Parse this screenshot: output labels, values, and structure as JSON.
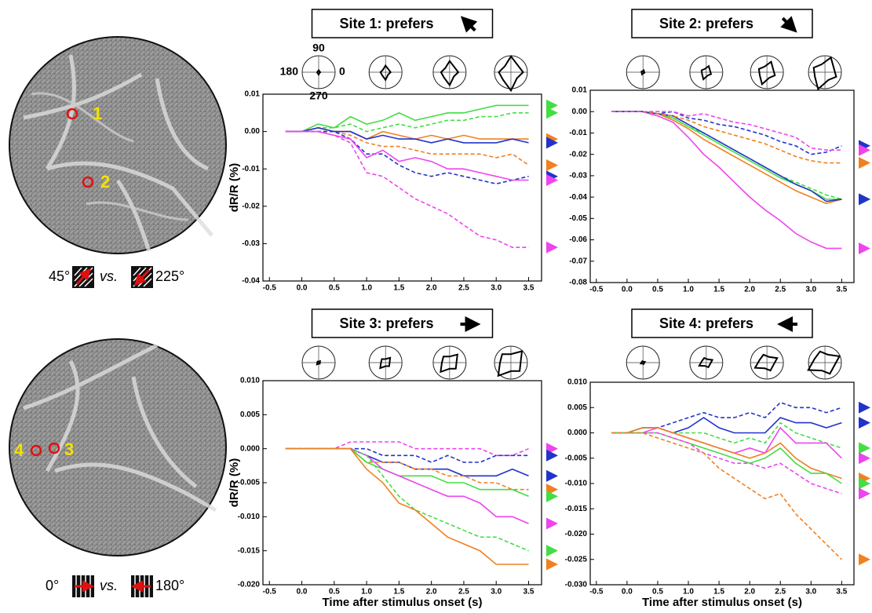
{
  "images": [
    {
      "site_labels": [
        "1",
        "2"
      ],
      "stimulus": {
        "left": "45°",
        "vs": "vs.",
        "right": "225°"
      }
    },
    {
      "site_labels": [
        "4",
        "3"
      ],
      "stimulus": {
        "left": "0°",
        "vs": "vs.",
        "right": "180°"
      }
    }
  ],
  "chart_data": [
    {
      "type": "line",
      "title": "Site 1: prefers",
      "polar_labels": [
        "90",
        "180",
        "0",
        "270"
      ],
      "ylabel": "dR/R (%)",
      "x": [
        -0.25,
        0,
        0.25,
        0.5,
        0.75,
        1.0,
        1.25,
        1.5,
        1.75,
        2.0,
        2.25,
        2.5,
        2.75,
        3.0,
        3.25,
        3.5
      ],
      "xlim": [
        -0.6,
        3.7
      ],
      "xticks": [
        -0.5,
        {
          "value": 0,
          "label": "0.0"
        },
        0.5,
        {
          "value": 1,
          "label": "1.0"
        },
        1.5,
        {
          "value": 2,
          "label": "2.0"
        },
        2.5,
        {
          "value": 3,
          "label": "3.0"
        },
        3.5
      ],
      "ylim": [
        -0.04,
        0.01
      ],
      "yticks": [
        0.01,
        {
          "value": 0,
          "label": "0.00"
        },
        -0.01,
        -0.02,
        -0.03,
        -0.04
      ],
      "series": [
        {
          "color": "#44dd44",
          "dash": false,
          "values": [
            0,
            0,
            0.002,
            0.001,
            0.004,
            0.002,
            0.003,
            0.005,
            0.003,
            0.004,
            0.005,
            0.005,
            0.006,
            0.007,
            0.007,
            0.007
          ]
        },
        {
          "color": "#44dd44",
          "dash": true,
          "values": [
            0,
            0,
            0.001,
            0.001,
            0.002,
            0,
            0.001,
            0.002,
            0.001,
            0.002,
            0.003,
            0.003,
            0.004,
            0.004,
            0.005,
            0.005
          ]
        },
        {
          "color": "#f08020",
          "dash": false,
          "values": [
            0,
            0,
            0.001,
            0,
            0,
            -0.002,
            0,
            -0.001,
            -0.002,
            -0.001,
            -0.002,
            -0.001,
            -0.002,
            -0.002,
            -0.002,
            -0.002
          ]
        },
        {
          "color": "#f08020",
          "dash": true,
          "values": [
            0,
            0,
            0,
            0,
            -0.001,
            -0.003,
            -0.004,
            -0.004,
            -0.005,
            -0.006,
            -0.006,
            -0.006,
            -0.006,
            -0.007,
            -0.006,
            -0.009
          ]
        },
        {
          "color": "#2233cc",
          "dash": false,
          "values": [
            0,
            0,
            0.001,
            0,
            0,
            -0.002,
            -0.001,
            -0.002,
            -0.002,
            -0.003,
            -0.002,
            -0.003,
            -0.003,
            -0.003,
            -0.002,
            -0.003
          ]
        },
        {
          "color": "#2233cc",
          "dash": true,
          "values": [
            0,
            0,
            0,
            0,
            -0.002,
            -0.006,
            -0.006,
            -0.009,
            -0.011,
            -0.012,
            -0.011,
            -0.012,
            -0.013,
            -0.014,
            -0.013,
            -0.012
          ]
        },
        {
          "color": "#ee44ee",
          "dash": false,
          "values": [
            0,
            0,
            0,
            -0.001,
            -0.002,
            -0.007,
            -0.005,
            -0.008,
            -0.007,
            -0.008,
            -0.01,
            -0.01,
            -0.011,
            -0.012,
            -0.013,
            -0.013
          ]
        },
        {
          "color": "#ee44ee",
          "dash": true,
          "values": [
            0,
            0,
            0,
            -0.001,
            -0.003,
            -0.011,
            -0.012,
            -0.015,
            -0.018,
            -0.02,
            -0.022,
            -0.025,
            -0.028,
            -0.029,
            -0.031,
            -0.031
          ]
        }
      ]
    },
    {
      "type": "line",
      "title": "Site 2: prefers",
      "x": [
        -0.25,
        0,
        0.25,
        0.5,
        0.75,
        1.0,
        1.25,
        1.5,
        1.75,
        2.0,
        2.25,
        2.5,
        2.75,
        3.0,
        3.25,
        3.5
      ],
      "xlim": [
        -0.6,
        3.7
      ],
      "xticks": [
        -0.5,
        {
          "value": 0,
          "label": "0.0"
        },
        0.5,
        {
          "value": 1,
          "label": "1.0"
        },
        1.5,
        {
          "value": 2,
          "label": "2.0"
        },
        2.5,
        {
          "value": 3,
          "label": "3.0"
        },
        3.5
      ],
      "ylim": [
        -0.08,
        0.01
      ],
      "yticks": [
        0.01,
        {
          "value": 0,
          "label": "0.00"
        },
        -0.01,
        -0.02,
        -0.03,
        -0.04,
        -0.05,
        -0.06,
        -0.07,
        -0.08
      ],
      "series": [
        {
          "color": "#ee44ee",
          "dash": false,
          "values": [
            0,
            0,
            0,
            -0.002,
            -0.005,
            -0.012,
            -0.02,
            -0.026,
            -0.033,
            -0.04,
            -0.046,
            -0.051,
            -0.057,
            -0.061,
            -0.064,
            -0.064
          ]
        },
        {
          "color": "#f08020",
          "dash": false,
          "values": [
            0,
            0,
            0,
            -0.001,
            -0.004,
            -0.008,
            -0.013,
            -0.017,
            -0.021,
            -0.025,
            -0.029,
            -0.033,
            -0.037,
            -0.04,
            -0.043,
            -0.041
          ]
        },
        {
          "color": "#44dd44",
          "dash": false,
          "values": [
            0,
            0,
            0,
            -0.001,
            -0.003,
            -0.007,
            -0.011,
            -0.015,
            -0.019,
            -0.023,
            -0.027,
            -0.031,
            -0.034,
            -0.037,
            -0.041,
            -0.041
          ]
        },
        {
          "color": "#44dd44",
          "dash": true,
          "values": [
            0,
            0,
            0,
            -0.001,
            -0.003,
            -0.007,
            -0.01,
            -0.014,
            -0.018,
            -0.022,
            -0.026,
            -0.03,
            -0.033,
            -0.036,
            -0.039,
            -0.041
          ]
        },
        {
          "color": "#2233cc",
          "dash": false,
          "values": [
            0,
            0,
            0,
            -0.001,
            -0.002,
            -0.006,
            -0.01,
            -0.014,
            -0.018,
            -0.022,
            -0.026,
            -0.03,
            -0.034,
            -0.037,
            -0.042,
            -0.041
          ]
        },
        {
          "color": "#2233cc",
          "dash": true,
          "values": [
            0,
            0,
            0,
            -0.001,
            0,
            -0.003,
            -0.004,
            -0.006,
            -0.007,
            -0.009,
            -0.011,
            -0.014,
            -0.016,
            -0.02,
            -0.019,
            -0.016
          ]
        },
        {
          "color": "#f08020",
          "dash": true,
          "values": [
            0,
            0,
            0,
            -0.001,
            -0.002,
            -0.004,
            -0.007,
            -0.009,
            -0.011,
            -0.013,
            -0.015,
            -0.018,
            -0.021,
            -0.023,
            -0.024,
            -0.024
          ]
        },
        {
          "color": "#ee44ee",
          "dash": true,
          "values": [
            0,
            0,
            0,
            0,
            0,
            -0.002,
            -0.001,
            -0.003,
            -0.005,
            -0.006,
            -0.008,
            -0.01,
            -0.012,
            -0.017,
            -0.018,
            -0.018
          ]
        }
      ]
    },
    {
      "type": "line",
      "title": "Site 3: prefers",
      "ylabel": "dR/R (%)",
      "xlabel": "Time after stimulus onset (s)",
      "x": [
        -0.25,
        0,
        0.25,
        0.5,
        0.75,
        1.0,
        1.25,
        1.5,
        1.75,
        2.0,
        2.25,
        2.5,
        2.75,
        3.0,
        3.25,
        3.5
      ],
      "xlim": [
        -0.6,
        3.7
      ],
      "xticks": [
        -0.5,
        {
          "value": 0,
          "label": "0.0"
        },
        0.5,
        {
          "value": 1,
          "label": "1.0"
        },
        1.5,
        {
          "value": 2,
          "label": "2.0"
        },
        2.5,
        {
          "value": 3,
          "label": "3.0"
        },
        3.5
      ],
      "ylim": [
        -0.02,
        0.01
      ],
      "yticks": [
        {
          "value": 0.01,
          "label": "0.010"
        },
        0.005,
        {
          "value": 0,
          "label": "0.000"
        },
        -0.005,
        {
          "value": -0.01,
          "label": "-0.010"
        },
        -0.015,
        {
          "value": -0.02,
          "label": "-0.020"
        }
      ],
      "series": [
        {
          "color": "#ee44ee",
          "dash": true,
          "values": [
            0,
            0,
            0,
            0,
            0.001,
            0.001,
            0.001,
            0.001,
            0,
            0,
            0,
            0,
            0,
            -0.001,
            -0.001,
            0
          ]
        },
        {
          "color": "#2233cc",
          "dash": true,
          "values": [
            0,
            0,
            0,
            0,
            0,
            0,
            -0.001,
            -0.001,
            -0.001,
            -0.002,
            -0.001,
            -0.002,
            -0.002,
            -0.001,
            -0.001,
            -0.001
          ]
        },
        {
          "color": "#2233cc",
          "dash": false,
          "values": [
            0,
            0,
            0,
            0,
            0,
            -0.001,
            -0.002,
            -0.002,
            -0.003,
            -0.003,
            -0.003,
            -0.004,
            -0.004,
            -0.004,
            -0.003,
            -0.004
          ]
        },
        {
          "color": "#f08020",
          "dash": true,
          "values": [
            0,
            0,
            0,
            0,
            0,
            -0.002,
            -0.002,
            -0.002,
            -0.003,
            -0.003,
            -0.004,
            -0.004,
            -0.005,
            -0.005,
            -0.006,
            -0.006
          ]
        },
        {
          "color": "#44dd44",
          "dash": false,
          "values": [
            0,
            0,
            0,
            0,
            0,
            -0.002,
            -0.003,
            -0.004,
            -0.004,
            -0.004,
            -0.005,
            -0.005,
            -0.006,
            -0.006,
            -0.006,
            -0.007
          ]
        },
        {
          "color": "#ee44ee",
          "dash": false,
          "values": [
            0,
            0,
            0,
            0,
            0,
            -0.001,
            -0.003,
            -0.004,
            -0.005,
            -0.006,
            -0.007,
            -0.007,
            -0.008,
            -0.01,
            -0.01,
            -0.011
          ]
        },
        {
          "color": "#44dd44",
          "dash": true,
          "values": [
            0,
            0,
            0,
            0,
            0,
            -0.001,
            -0.004,
            -0.007,
            -0.009,
            -0.01,
            -0.011,
            -0.012,
            -0.013,
            -0.013,
            -0.014,
            -0.015
          ]
        },
        {
          "color": "#f08020",
          "dash": false,
          "values": [
            0,
            0,
            0,
            0,
            0,
            -0.003,
            -0.005,
            -0.008,
            -0.009,
            -0.011,
            -0.013,
            -0.014,
            -0.015,
            -0.017,
            -0.017,
            -0.017
          ]
        }
      ]
    },
    {
      "type": "line",
      "title": "Site 4: prefers",
      "xlabel": "Time after stimulus onset (s)",
      "x": [
        -0.25,
        0,
        0.25,
        0.5,
        0.75,
        1.0,
        1.25,
        1.5,
        1.75,
        2.0,
        2.25,
        2.5,
        2.75,
        3.0,
        3.25,
        3.5
      ],
      "xlim": [
        -0.6,
        3.7
      ],
      "xticks": [
        -0.5,
        {
          "value": 0,
          "label": "0.0"
        },
        0.5,
        {
          "value": 1,
          "label": "1.0"
        },
        1.5,
        {
          "value": 2,
          "label": "2.0"
        },
        2.5,
        {
          "value": 3,
          "label": "3.0"
        },
        3.5
      ],
      "ylim": [
        -0.03,
        0.01
      ],
      "yticks": [
        {
          "value": 0.01,
          "label": "0.010"
        },
        0.005,
        {
          "value": 0,
          "label": "0.000"
        },
        -0.005,
        {
          "value": -0.01,
          "label": "-0.010"
        },
        -0.015,
        {
          "value": -0.02,
          "label": "-0.020"
        },
        -0.025,
        {
          "value": -0.03,
          "label": "-0.030"
        }
      ],
      "series": [
        {
          "color": "#2233cc",
          "dash": true,
          "values": [
            0,
            0,
            0.001,
            0.001,
            0.002,
            0.003,
            0.004,
            0.003,
            0.003,
            0.004,
            0.003,
            0.006,
            0.005,
            0.005,
            0.004,
            0.005
          ]
        },
        {
          "color": "#2233cc",
          "dash": false,
          "values": [
            0,
            0,
            0.001,
            0.001,
            0,
            0.001,
            0.003,
            0.001,
            0,
            0,
            0,
            0.003,
            0.002,
            0.002,
            0.001,
            0.002
          ]
        },
        {
          "color": "#44dd44",
          "dash": true,
          "values": [
            0,
            0,
            0.001,
            0.001,
            0,
            0,
            0,
            -0.001,
            -0.002,
            -0.001,
            -0.002,
            0.002,
            0,
            -0.001,
            -0.002,
            -0.003
          ]
        },
        {
          "color": "#ee44ee",
          "dash": false,
          "values": [
            0,
            0,
            0,
            0.001,
            0,
            -0.001,
            -0.002,
            -0.003,
            -0.004,
            -0.003,
            -0.004,
            0.001,
            -0.002,
            -0.002,
            -0.002,
            -0.005
          ]
        },
        {
          "color": "#f08020",
          "dash": false,
          "values": [
            0,
            0,
            0.001,
            0.001,
            0,
            -0.001,
            -0.002,
            -0.003,
            -0.004,
            -0.005,
            -0.004,
            -0.002,
            -0.005,
            -0.007,
            -0.008,
            -0.009
          ]
        },
        {
          "color": "#44dd44",
          "dash": false,
          "values": [
            0,
            0,
            0,
            0,
            -0.001,
            -0.002,
            -0.003,
            -0.004,
            -0.005,
            -0.006,
            -0.005,
            -0.003,
            -0.006,
            -0.008,
            -0.008,
            -0.01
          ]
        },
        {
          "color": "#ee44ee",
          "dash": true,
          "values": [
            0,
            0,
            0,
            0,
            -0.001,
            -0.002,
            -0.004,
            -0.005,
            -0.006,
            -0.006,
            -0.007,
            -0.006,
            -0.008,
            -0.01,
            -0.011,
            -0.012
          ]
        },
        {
          "color": "#f08020",
          "dash": true,
          "values": [
            0,
            0,
            0,
            -0.001,
            -0.002,
            -0.003,
            -0.004,
            -0.007,
            -0.009,
            -0.011,
            -0.013,
            -0.012,
            -0.016,
            -0.019,
            -0.022,
            -0.025
          ]
        }
      ]
    }
  ]
}
